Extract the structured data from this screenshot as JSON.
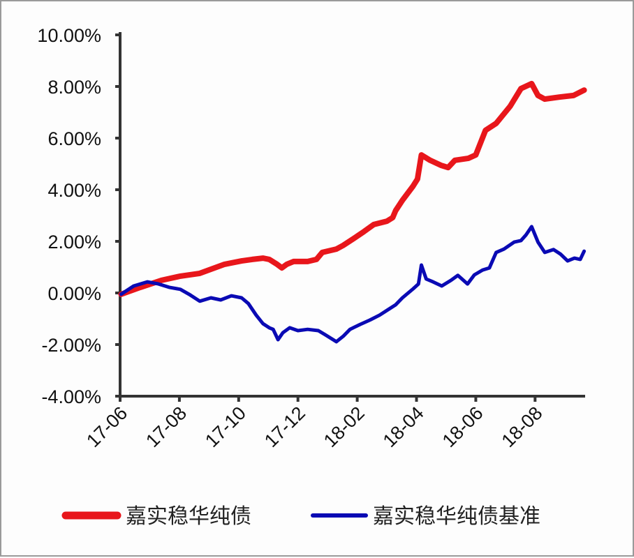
{
  "chart_data": {
    "type": "line",
    "title": "",
    "xlabel": "",
    "ylabel": "",
    "ylim": [
      -4,
      10
    ],
    "yticks": [
      -4,
      -2,
      0,
      2,
      4,
      6,
      8,
      10
    ],
    "ytick_labels": [
      "-4.00%",
      "-2.00%",
      "0.00%",
      "2.00%",
      "4.00%",
      "6.00%",
      "8.00%",
      "10.00%"
    ],
    "xlim": [
      "2017-06-01",
      "2018-09-22"
    ],
    "xticks": [
      "2017-06-01",
      "2017-08-01",
      "2017-10-01",
      "2017-12-01",
      "2018-02-01",
      "2018-04-01",
      "2018-06-01",
      "2018-08-01"
    ],
    "xtick_labels": [
      "17-06",
      "17-08",
      "17-10",
      "17-12",
      "18-02",
      "18-04",
      "18-06",
      "18-08"
    ],
    "grid": false,
    "legend_position": "bottom",
    "series": [
      {
        "name": "嘉实稳华纯债",
        "color": "#e8161b",
        "x": [
          "2017-06-02",
          "2017-06-22",
          "2017-07-13",
          "2017-08-02",
          "2017-08-22",
          "2017-09-03",
          "2017-09-17",
          "2017-10-04",
          "2017-10-15",
          "2017-10-26",
          "2017-11-02",
          "2017-11-10",
          "2017-11-15",
          "2017-11-20",
          "2017-11-27",
          "2017-12-11",
          "2017-12-20",
          "2017-12-26",
          "2018-01-10",
          "2018-01-17",
          "2018-01-28",
          "2018-02-08",
          "2018-02-18",
          "2018-03-01",
          "2018-03-07",
          "2018-03-10",
          "2018-03-17",
          "2018-03-28",
          "2018-04-02",
          "2018-04-06",
          "2018-04-15",
          "2018-04-26",
          "2018-05-03",
          "2018-05-10",
          "2018-05-24",
          "2018-06-01",
          "2018-06-11",
          "2018-06-22",
          "2018-07-06",
          "2018-07-17",
          "2018-07-28",
          "2018-08-04",
          "2018-08-11",
          "2018-08-26",
          "2018-09-10",
          "2018-09-21"
        ],
        "values": [
          -0.05,
          0.22,
          0.49,
          0.65,
          0.76,
          0.92,
          1.11,
          1.24,
          1.3,
          1.35,
          1.3,
          1.11,
          0.97,
          1.11,
          1.22,
          1.22,
          1.3,
          1.57,
          1.7,
          1.84,
          2.11,
          2.38,
          2.65,
          2.78,
          2.92,
          3.19,
          3.59,
          4.14,
          4.41,
          5.35,
          5.14,
          4.95,
          4.86,
          5.14,
          5.22,
          5.35,
          6.3,
          6.57,
          7.24,
          7.92,
          8.11,
          7.65,
          7.51,
          7.59,
          7.65,
          7.86
        ]
      },
      {
        "name": "嘉实稳华纯债基准",
        "color": "#0a0ab4",
        "x": [
          "2017-06-02",
          "2017-06-15",
          "2017-06-29",
          "2017-07-10",
          "2017-07-21",
          "2017-08-02",
          "2017-08-11",
          "2017-08-22",
          "2017-09-03",
          "2017-09-13",
          "2017-09-24",
          "2017-10-04",
          "2017-10-11",
          "2017-10-19",
          "2017-10-26",
          "2017-11-02",
          "2017-11-06",
          "2017-11-11",
          "2017-11-16",
          "2017-11-23",
          "2017-12-01",
          "2017-12-11",
          "2017-12-22",
          "2017-12-29",
          "2018-01-10",
          "2018-01-17",
          "2018-01-24",
          "2018-02-04",
          "2018-02-14",
          "2018-02-24",
          "2018-03-02",
          "2018-03-10",
          "2018-03-17",
          "2018-03-28",
          "2018-04-03",
          "2018-04-06",
          "2018-04-11",
          "2018-04-18",
          "2018-04-27",
          "2018-05-06",
          "2018-05-13",
          "2018-05-23",
          "2018-05-30",
          "2018-06-08",
          "2018-06-15",
          "2018-06-22",
          "2018-06-30",
          "2018-07-10",
          "2018-07-17",
          "2018-07-22",
          "2018-07-28",
          "2018-08-04",
          "2018-08-11",
          "2018-08-20",
          "2018-08-27",
          "2018-09-04",
          "2018-09-11",
          "2018-09-17",
          "2018-09-21"
        ],
        "values": [
          -0.05,
          0.27,
          0.43,
          0.35,
          0.22,
          0.14,
          -0.05,
          -0.32,
          -0.19,
          -0.27,
          -0.11,
          -0.19,
          -0.41,
          -0.86,
          -1.19,
          -1.35,
          -1.41,
          -1.81,
          -1.54,
          -1.35,
          -1.46,
          -1.41,
          -1.46,
          -1.62,
          -1.89,
          -1.68,
          -1.41,
          -1.22,
          -1.05,
          -0.86,
          -0.65,
          -0.46,
          -0.19,
          0.16,
          0.35,
          1.08,
          0.54,
          0.43,
          0.27,
          0.49,
          0.68,
          0.35,
          0.7,
          0.89,
          0.97,
          1.57,
          1.7,
          1.97,
          2.03,
          2.24,
          2.57,
          1.97,
          1.57,
          1.68,
          1.51,
          1.24,
          1.35,
          1.3,
          1.62
        ]
      }
    ]
  }
}
